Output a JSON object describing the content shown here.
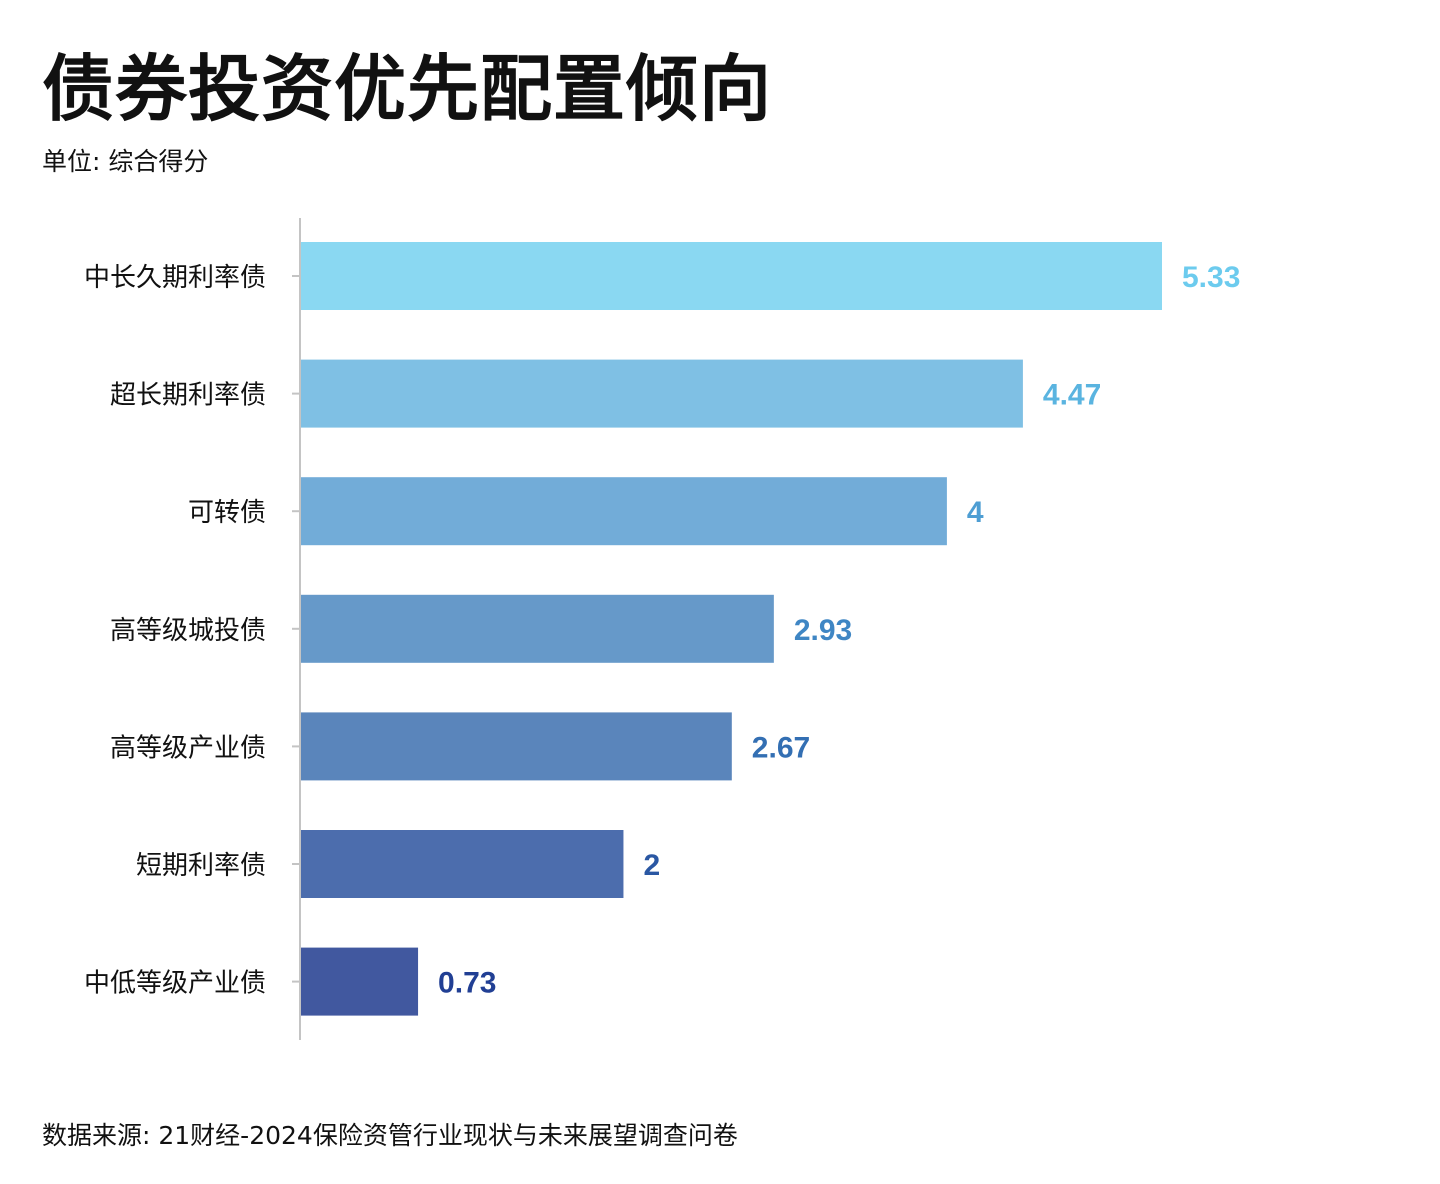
{
  "chart_data": {
    "type": "bar",
    "orientation": "horizontal",
    "title": "债券投资优先配置倾向",
    "subtitle": "单位: 综合得分",
    "source": "数据来源: 21财经-2024保险资管行业现状与未来展望调查问卷",
    "categories": [
      "中长久期利率债",
      "超长期利率债",
      "可转债",
      "高等级城投债",
      "高等级产业债",
      "短期利率债",
      "中低等级产业债"
    ],
    "values": [
      5.33,
      4.47,
      4,
      2.93,
      2.67,
      2,
      0.73
    ],
    "xlim": [
      0,
      5.33
    ],
    "grid": false,
    "bar_colors": [
      "#8ad8f2",
      "#7fc0e4",
      "#72acd8",
      "#6699c9",
      "#5a85bb",
      "#4c6dad",
      "#41589f"
    ],
    "label_colors": [
      "#6ccbee",
      "#5ab4e0",
      "#4e9ed3",
      "#3f86c4",
      "#336fb3",
      "#2a57a3",
      "#213f94"
    ],
    "axis_color": "#c4c4c4"
  }
}
